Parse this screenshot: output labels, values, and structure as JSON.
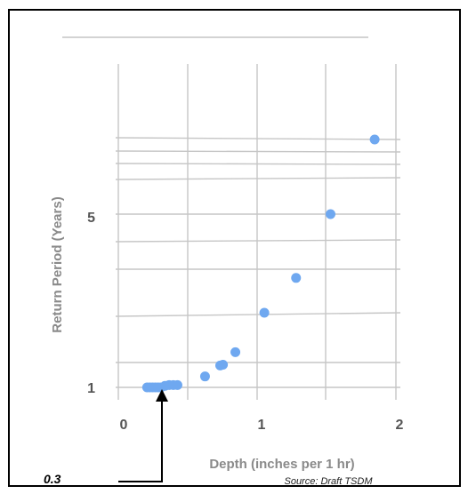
{
  "chart_data": {
    "type": "scatter",
    "xlabel": "Depth (inches per 1 hr)",
    "ylabel": "Return Period (Years)",
    "x_ticks": [
      "0",
      "1",
      "2"
    ],
    "y_ticks": [
      "1",
      "5"
    ],
    "xlim": [
      0,
      2
    ],
    "series": [
      {
        "color": "#6fa8f0",
        "points": [
          {
            "x": 0.17,
            "y": 1.0
          },
          {
            "x": 0.19,
            "y": 1.0
          },
          {
            "x": 0.21,
            "y": 1.0
          },
          {
            "x": 0.23,
            "y": 1.0
          },
          {
            "x": 0.25,
            "y": 1.0
          },
          {
            "x": 0.27,
            "y": 1.0
          },
          {
            "x": 0.3,
            "y": 1.02
          },
          {
            "x": 0.33,
            "y": 1.03
          },
          {
            "x": 0.36,
            "y": 1.03
          },
          {
            "x": 0.39,
            "y": 1.03
          },
          {
            "x": 0.59,
            "y": 1.14
          },
          {
            "x": 0.7,
            "y": 1.28
          },
          {
            "x": 0.72,
            "y": 1.29
          },
          {
            "x": 0.81,
            "y": 1.45
          },
          {
            "x": 1.02,
            "y": 2.0
          },
          {
            "x": 1.25,
            "y": 2.8
          },
          {
            "x": 1.5,
            "y": 5.0
          },
          {
            "x": 1.82,
            "y": 10.0
          }
        ]
      }
    ],
    "annotation": "0.3",
    "annotation_x": 0.3,
    "source": "Source:  Draft TSDM"
  }
}
